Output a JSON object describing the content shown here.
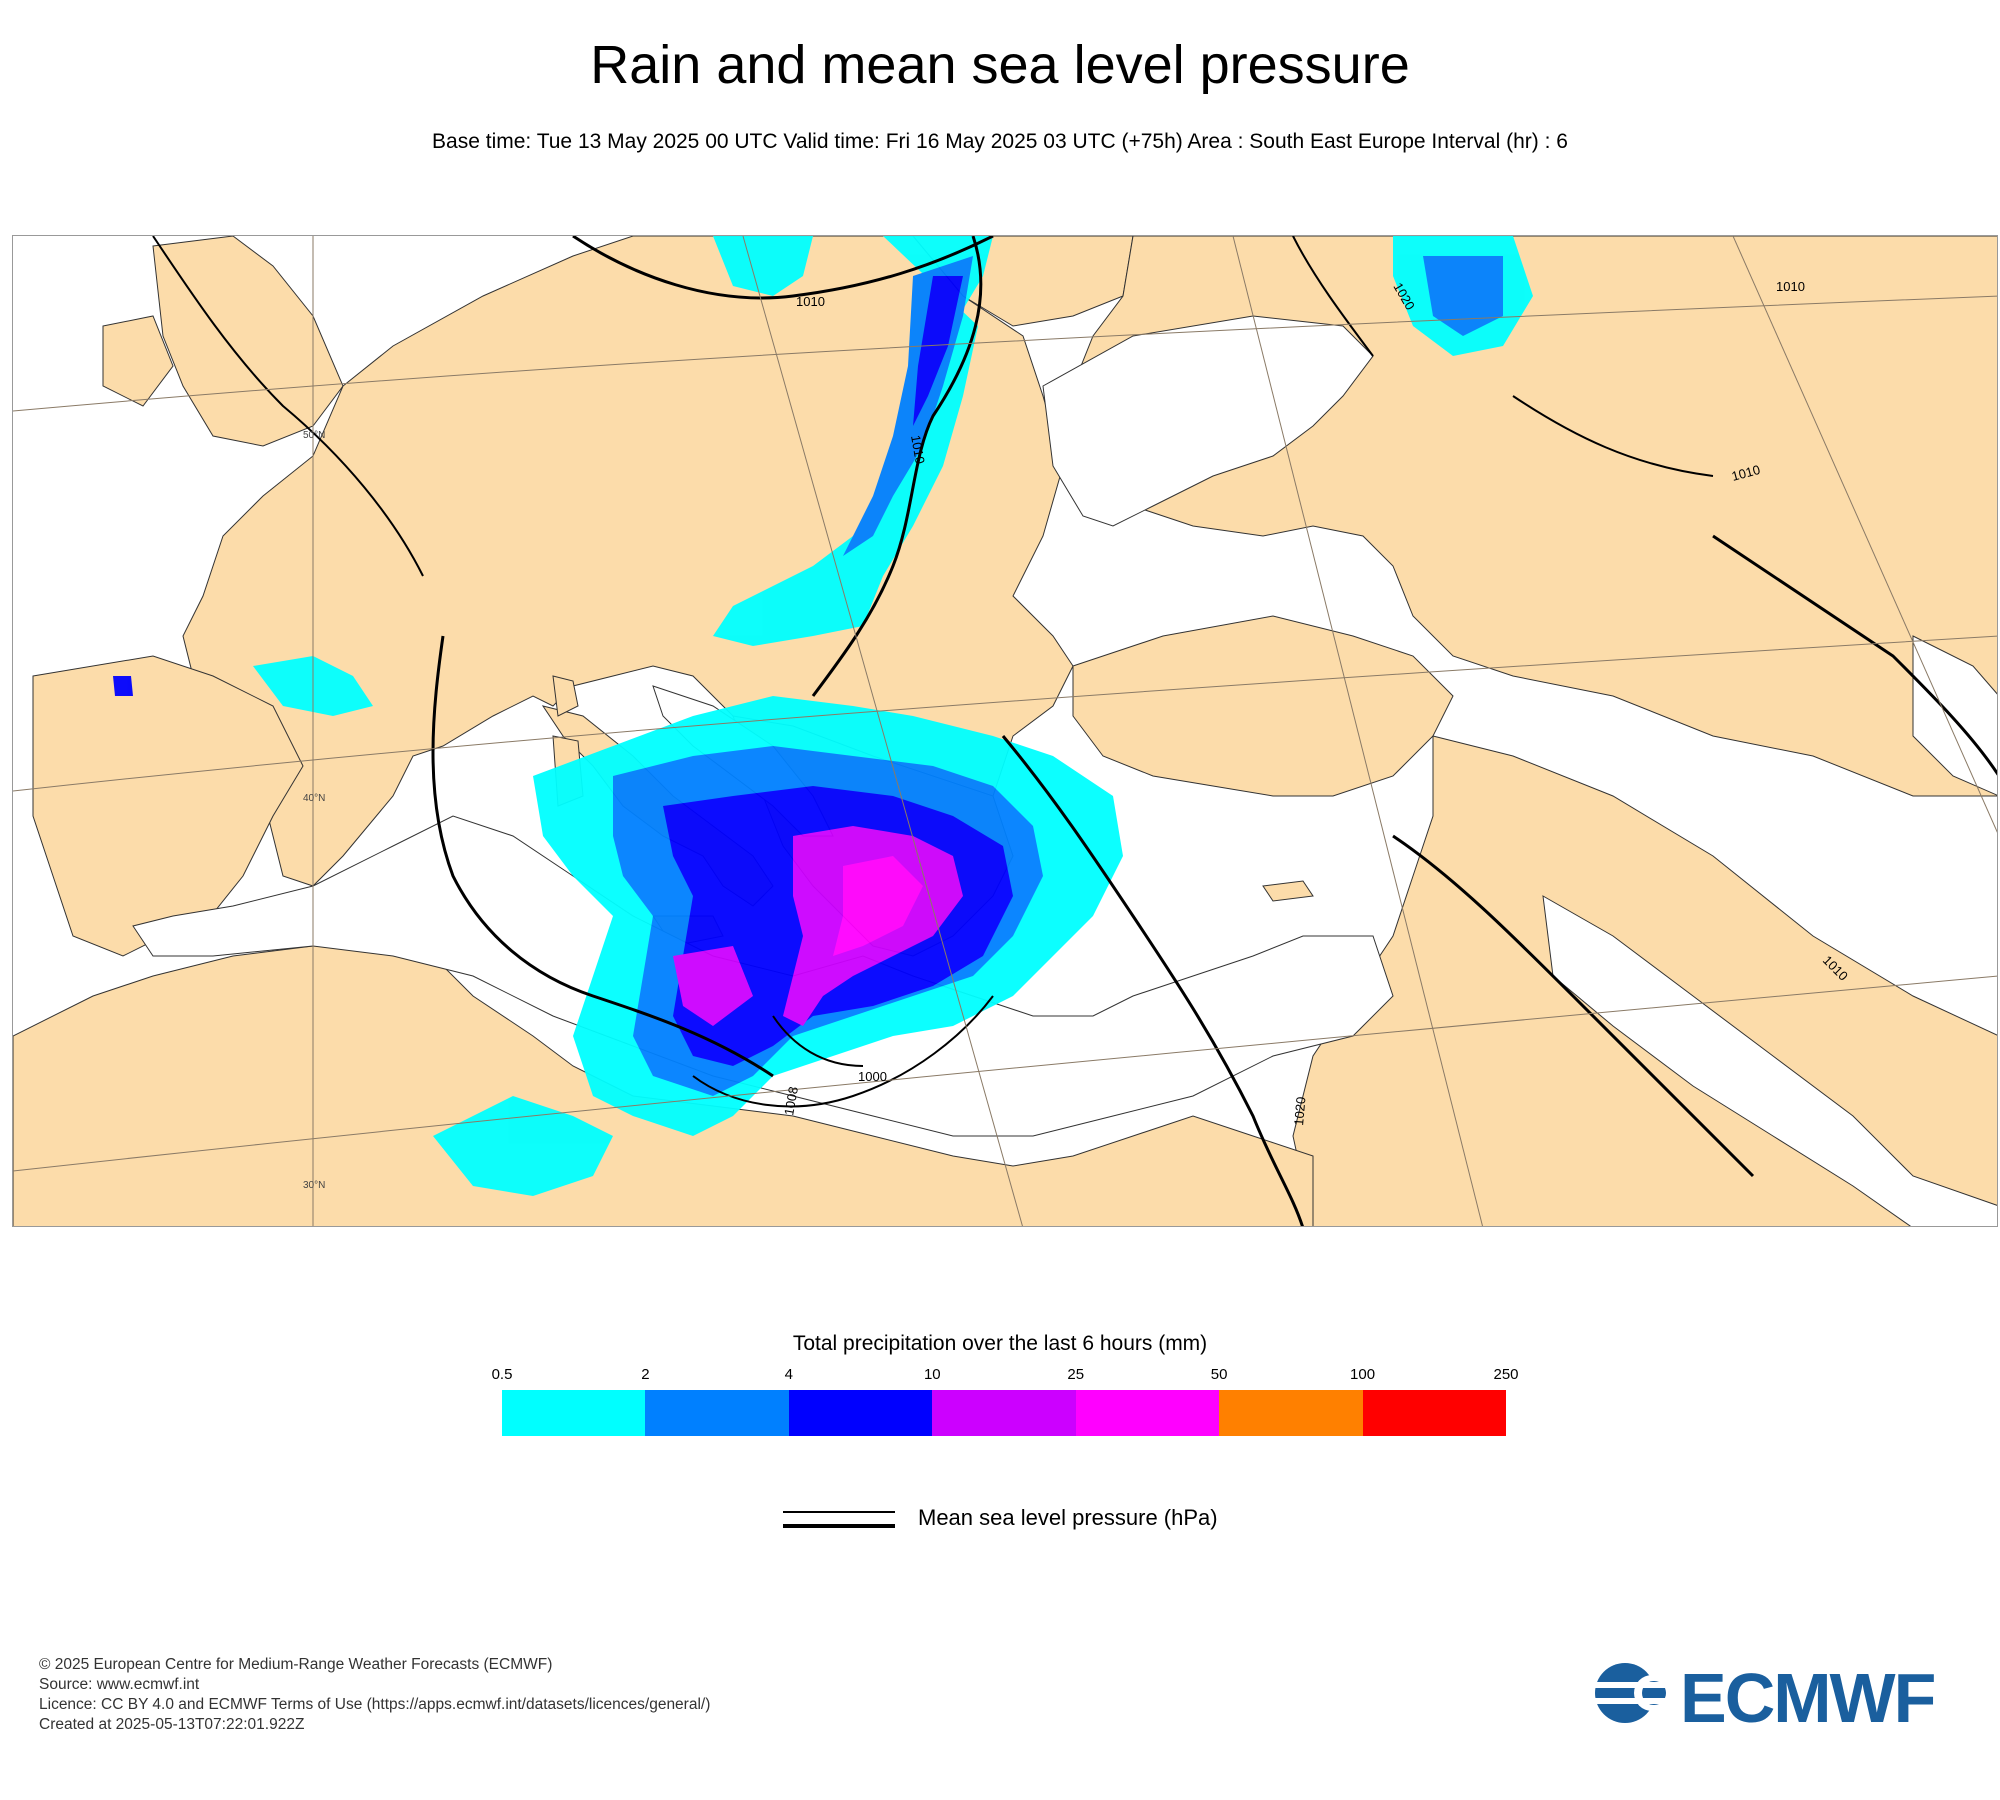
{
  "title": "Rain and mean sea level pressure",
  "subtitle": "Base time: Tue 13 May 2025 00 UTC Valid time: Fri 16 May 2025 03 UTC (+75h) Area : South East Europe Interval (hr) : 6",
  "map": {
    "isobar_labels": [
      "1010",
      "1010",
      "1010",
      "1010",
      "1010",
      "1020",
      "1020",
      "1008",
      "1000"
    ],
    "lat_labels": [
      "50°N",
      "40°N",
      "30°N"
    ],
    "colors": {
      "land": "#fcdcaa",
      "sea": "#ffffff",
      "isobar": "#000000"
    }
  },
  "legend": {
    "title": "Total precipitation over the last 6 hours (mm)",
    "ticks": [
      "0.5",
      "2",
      "4",
      "10",
      "25",
      "50",
      "100",
      "250"
    ],
    "colors": [
      "#00ffff",
      "#0080ff",
      "#0000ff",
      "#cc00ff",
      "#ff00ff",
      "#ff8000",
      "#ff0000"
    ],
    "msl_label": "Mean sea level pressure (hPa)"
  },
  "footer": {
    "line1": "© 2025 European Centre for Medium-Range Weather Forecasts (ECMWF)",
    "line2": "Source: www.ecmwf.int",
    "line3": "Licence: CC BY 4.0 and ECMWF Terms of Use (https://apps.ecmwf.int/datasets/licences/general/)",
    "line4": "Created at 2025-05-13T07:22:01.922Z"
  },
  "logo": {
    "text": "ECMWF",
    "color": "#1a5f9e",
    "icon": "ecmwf-logo-icon"
  }
}
